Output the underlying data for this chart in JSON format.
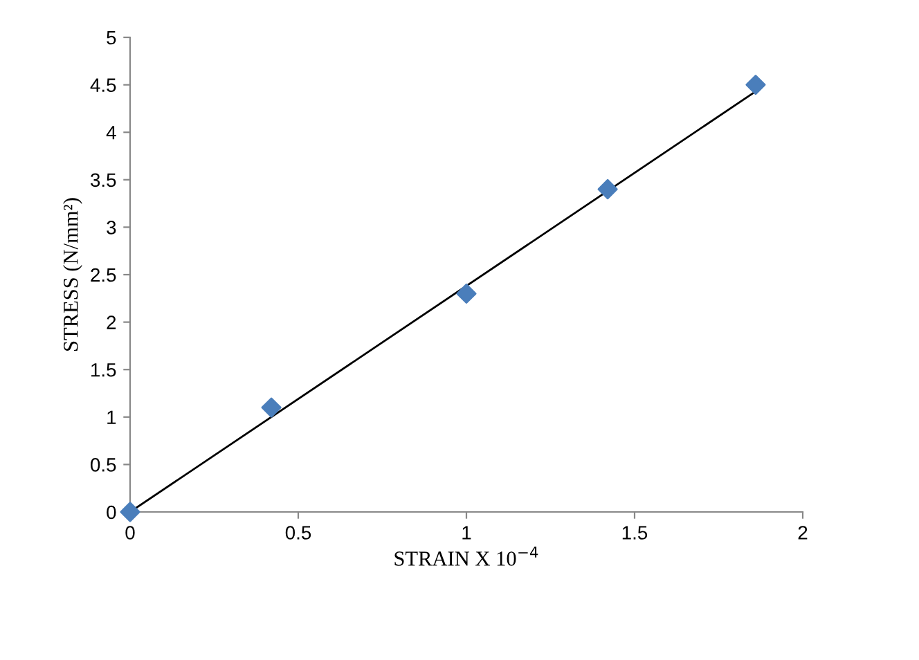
{
  "chart_data": {
    "type": "scatter",
    "xlabel": "STRAIN X 10$^{−4}$",
    "ylabel": "STRESS (N/mm²)",
    "xlim": [
      0,
      2
    ],
    "xticks": [
      0,
      0.5,
      1,
      1.5,
      2
    ],
    "ylim": [
      0,
      5
    ],
    "yticks": [
      0,
      0.5,
      1,
      1.5,
      2,
      2.5,
      3,
      3.5,
      4,
      4.5,
      5
    ],
    "grid": false,
    "legend": false,
    "marker": "diamond",
    "series": [
      {
        "color": "#4a7ebb",
        "x": [
          0,
          0.42,
          1.0,
          1.42,
          1.86
        ],
        "values": [
          0,
          1.1,
          2.3,
          3.4,
          4.5
        ]
      },
      {
        "type": "line",
        "color": "#000000",
        "x": [
          0,
          1.86
        ],
        "values": [
          0,
          4.43
        ],
        "marker": "none"
      }
    ]
  }
}
